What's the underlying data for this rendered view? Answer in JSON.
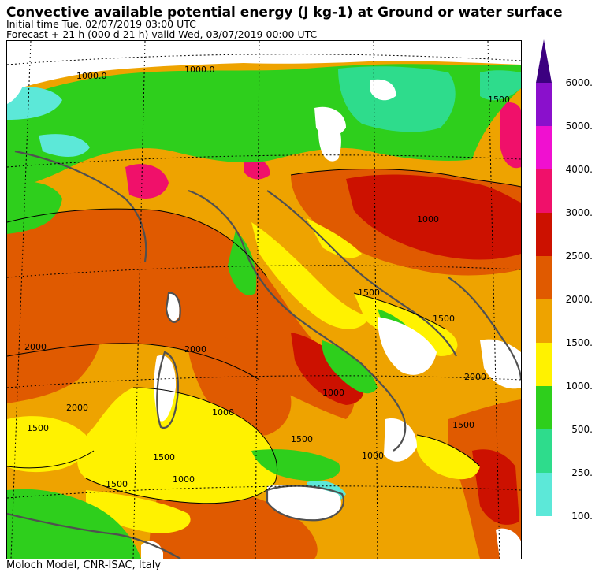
{
  "header": {
    "title": "Convective available potential energy (J kg-1) at Ground or water surface",
    "initial_time": "Initial time  Tue, 02/07/2019  03:00 UTC",
    "forecast": "Forecast  +  21 h  (000 d 21 h)  valid Wed, 03/07/2019 00:00 UTC"
  },
  "footer": {
    "credit": "Moloch Model, CNR-ISAC, Italy"
  },
  "legend": {
    "levels": [
      {
        "label": "100.",
        "color": "#5ce8d8"
      },
      {
        "label": "250.",
        "color": "#2edc8c"
      },
      {
        "label": "500.",
        "color": "#2ecf1c"
      },
      {
        "label": "1000.",
        "color": "#fff200"
      },
      {
        "label": "1500.",
        "color": "#eea300"
      },
      {
        "label": "2000.",
        "color": "#e05a00"
      },
      {
        "label": "2500.",
        "color": "#cc1100"
      },
      {
        "label": "3000.",
        "color": "#f0106a"
      },
      {
        "label": "4000.",
        "color": "#f010d0"
      },
      {
        "label": "5000.",
        "color": "#8a10cc"
      },
      {
        "label": "6000.",
        "color": "#3c0080"
      }
    ],
    "arrow_color": "#3c0080"
  },
  "map": {
    "contour_labels": [
      "1000.0",
      "1000.0",
      "1500",
      "1500",
      "1500",
      "1500",
      "1500",
      "1500",
      "1500",
      "1500",
      "2000",
      "2000",
      "2000",
      "2000",
      "1000",
      "1000",
      "1000",
      "1000",
      "1000"
    ],
    "colors": {
      "no_data": "#ffffff",
      "coast": "#505050",
      "graticule": "#000000"
    }
  }
}
